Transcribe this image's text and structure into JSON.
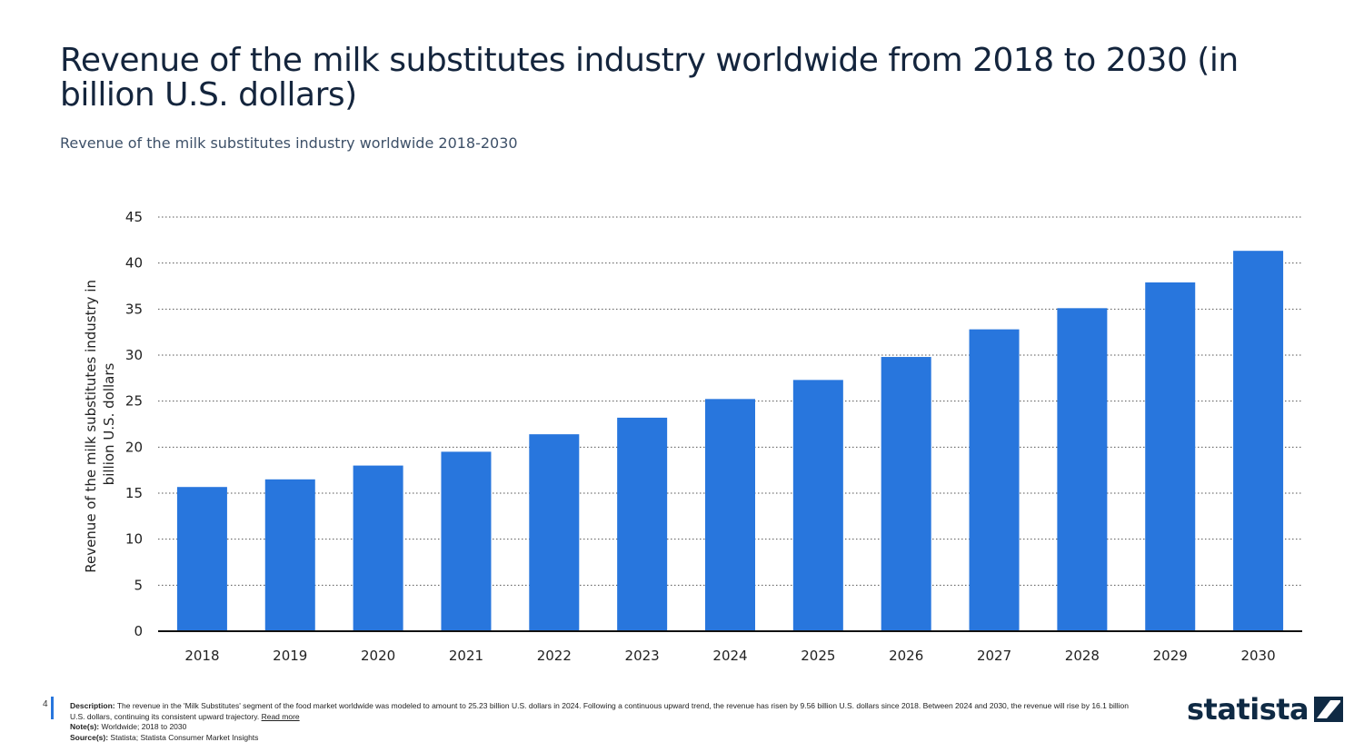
{
  "title": "Revenue of the milk substitutes industry worldwide from 2018 to 2030 (in billion U.S. dollars)",
  "subtitle": "Revenue of the milk substitutes industry worldwide 2018-2030",
  "chart_data": {
    "type": "bar",
    "categories": [
      "2018",
      "2019",
      "2020",
      "2021",
      "2022",
      "2023",
      "2024",
      "2025",
      "2026",
      "2027",
      "2028",
      "2029",
      "2030"
    ],
    "values": [
      15.67,
      16.5,
      18.0,
      19.5,
      21.4,
      23.2,
      25.23,
      27.3,
      29.8,
      32.8,
      35.1,
      37.9,
      41.33
    ],
    "ylabel": "Revenue of the milk substitutes industry in billion U.S. dollars",
    "xlabel": "",
    "ylim": [
      0,
      45
    ],
    "yticks": [
      0,
      5,
      10,
      15,
      20,
      25,
      30,
      35,
      40,
      45
    ],
    "grid": true,
    "bar_color": "#2876dd"
  },
  "footer": {
    "page_number": "4",
    "description_label": "Description:",
    "description": "The revenue in the 'Milk Substitutes' segment of the food market worldwide was modeled to amount to 25.23 billion U.S. dollars in 2024. Following a continuous upward trend, the revenue has risen by 9.56 billion U.S. dollars since 2018. Between 2024 and 2030, the revenue will rise by 16.1 billion U.S. dollars, continuing its consistent upward trajectory.",
    "read_more": "Read more",
    "notes_label": "Note(s):",
    "notes": "Worldwide; 2018 to 2030",
    "source_label": "Source(s):",
    "source": "Statista; Statista Consumer Market Insights"
  },
  "logo": {
    "text": "statista",
    "icon": "statista-logo-icon"
  }
}
